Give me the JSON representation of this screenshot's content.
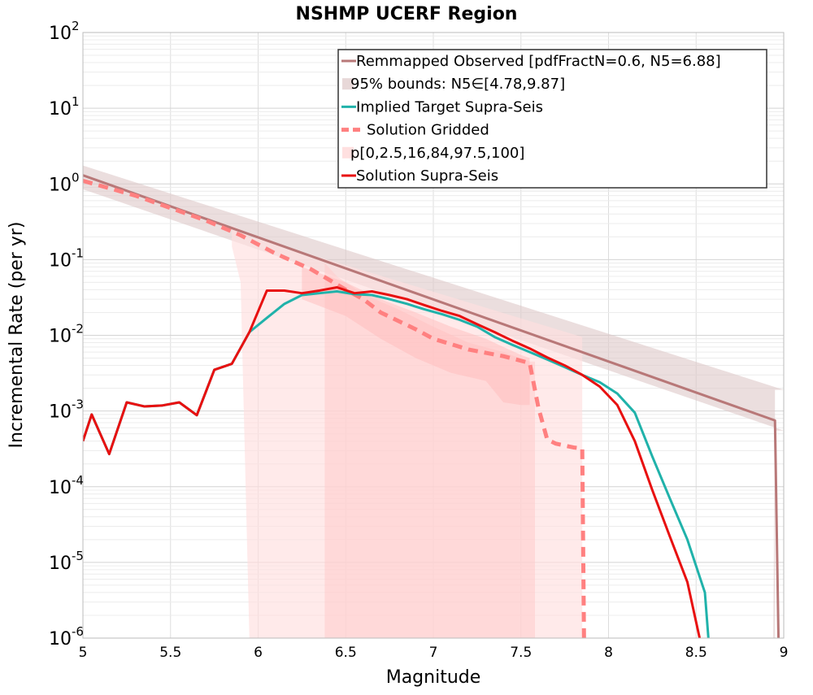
{
  "chart_data": {
    "type": "line",
    "title": "NSHMP UCERF Region",
    "xlabel": "Magnitude",
    "ylabel": "Incremental Rate (per yr)",
    "xlim": [
      5,
      9
    ],
    "ylim": [
      1e-06,
      100
    ],
    "y_scale": "log",
    "x_ticks": [
      "5",
      "5.5",
      "6",
      "6.5",
      "7",
      "7.5",
      "8",
      "8.5",
      "9"
    ],
    "y_ticks": [
      {
        "base": "10",
        "exp": "-6"
      },
      {
        "base": "10",
        "exp": "-5"
      },
      {
        "base": "10",
        "exp": "-4"
      },
      {
        "base": "10",
        "exp": "-3"
      },
      {
        "base": "10",
        "exp": "-2"
      },
      {
        "base": "10",
        "exp": "-1"
      },
      {
        "base": "10",
        "exp": "0"
      },
      {
        "base": "10",
        "exp": "1"
      },
      {
        "base": "10",
        "exp": "2"
      }
    ],
    "grid": true,
    "legend_position": "top-right",
    "legend": [
      {
        "label": "Remmapped Observed [pdfFractN=0.6, N5=6.88]",
        "style": "line",
        "color": "#b87878"
      },
      {
        "label": "95% bounds: N5∈[4.78,9.87]",
        "style": "band",
        "color": "#e8d8d8"
      },
      {
        "label": "Implied Target Supra-Seis",
        "style": "line",
        "color": "#20b2aa"
      },
      {
        "label": "Solution Gridded",
        "style": "dashed",
        "color": "#ff8080"
      },
      {
        "label": "p[0,2.5,16,84,97.5,100]",
        "style": "band",
        "color": "#ffe0e0"
      },
      {
        "label": "Solution Supra-Seis",
        "style": "line",
        "color": "#e81010"
      }
    ],
    "bands": [
      {
        "name": "95% bounds",
        "color": "#ddc8c8",
        "opacity": 0.6,
        "x": [
          5.0,
          9.0,
          8.95
        ],
        "lower": [
          0.85,
          0.00055,
          0.00055
        ],
        "upper": [
          1.75,
          0.0019,
          0.0019
        ],
        "drop_at_end": true
      },
      {
        "name": "p0-p100",
        "color": "#ffdede",
        "opacity": 0.65,
        "x": [
          5.85,
          5.9,
          5.95,
          5.98,
          6.0,
          7.85
        ],
        "lower": [
          0.15,
          0.05,
          1e-06,
          1e-06,
          1e-06,
          1e-06
        ],
        "upper": [
          0.28,
          0.25,
          0.2,
          0.19,
          0.19,
          0.0095
        ]
      },
      {
        "name": "p2.5-p97.5",
        "color": "#ffcaca",
        "opacity": 0.55,
        "x": [
          6.38,
          6.45,
          6.6,
          6.8,
          7.0,
          7.2,
          7.4,
          7.55,
          7.58
        ],
        "lower": [
          1e-06,
          1e-06,
          1e-06,
          1e-06,
          1e-06,
          1e-06,
          1e-06,
          1e-06,
          1e-06
        ],
        "upper": [
          0.09,
          0.06,
          0.035,
          0.022,
          0.013,
          0.008,
          0.006,
          0.0045,
          0.0045
        ]
      },
      {
        "name": "p16-p84",
        "color": "#ffbcbc",
        "opacity": 0.5,
        "x": [
          6.25,
          6.5,
          6.7,
          6.9,
          7.1,
          7.3,
          7.4,
          7.5,
          7.55
        ],
        "lower": [
          0.03,
          0.018,
          0.009,
          0.005,
          0.0032,
          0.0025,
          0.0013,
          0.0012,
          0.0012
        ],
        "upper": [
          0.08,
          0.05,
          0.03,
          0.02,
          0.013,
          0.009,
          0.007,
          0.0055,
          0.005
        ]
      }
    ],
    "series": [
      {
        "name": "Remmapped Observed [pdfFractN=0.6, N5=6.88]",
        "color": "#b87878",
        "width": 3,
        "dash": "",
        "x": [
          5.0,
          8.95,
          8.97
        ],
        "y": [
          1.3,
          0.00075,
          1e-06
        ]
      },
      {
        "name": "Solution Gridded",
        "color": "#ff8080",
        "width": 5,
        "dash": "12,8",
        "x": [
          5.0,
          5.3,
          5.5,
          5.7,
          5.9,
          6.1,
          6.3,
          6.4,
          6.5,
          6.6,
          6.7,
          6.9,
          7.0,
          7.2,
          7.4,
          7.55,
          7.6,
          7.65,
          7.7,
          7.8,
          7.85,
          7.86
        ],
        "y": [
          1.1,
          0.7,
          0.48,
          0.33,
          0.21,
          0.12,
          0.075,
          0.055,
          0.04,
          0.03,
          0.02,
          0.012,
          0.009,
          0.0065,
          0.0053,
          0.0043,
          0.0011,
          0.00042,
          0.00037,
          0.00033,
          0.00032,
          1e-06
        ]
      },
      {
        "name": "Implied Target Supra-Seis",
        "color": "#20b2aa",
        "width": 3,
        "dash": "",
        "x": [
          5.0,
          5.05,
          5.15,
          5.25,
          5.35,
          5.45,
          5.55,
          5.65,
          5.75,
          5.85,
          5.95,
          6.05,
          6.15,
          6.25,
          6.35,
          6.45,
          6.55,
          6.65,
          6.75,
          6.85,
          6.95,
          7.05,
          7.15,
          7.25,
          7.35,
          7.45,
          7.55,
          7.65,
          7.75,
          7.85,
          7.95,
          8.05,
          8.15,
          8.25,
          8.35,
          8.45,
          8.55,
          8.57
        ],
        "y": [
          0.0004,
          0.0009,
          0.00027,
          0.0013,
          0.00115,
          0.00118,
          0.0013,
          0.00088,
          0.0035,
          0.0042,
          0.011,
          0.017,
          0.026,
          0.034,
          0.036,
          0.038,
          0.035,
          0.034,
          0.03,
          0.026,
          0.022,
          0.019,
          0.016,
          0.013,
          0.0095,
          0.0075,
          0.006,
          0.0048,
          0.0038,
          0.003,
          0.0024,
          0.0017,
          0.00095,
          0.00025,
          7e-05,
          2e-05,
          4e-06,
          1e-06
        ]
      },
      {
        "name": "Solution Supra-Seis",
        "color": "#e81010",
        "width": 3,
        "dash": "",
        "x": [
          5.0,
          5.05,
          5.15,
          5.25,
          5.35,
          5.45,
          5.55,
          5.65,
          5.75,
          5.85,
          5.95,
          6.05,
          6.15,
          6.25,
          6.35,
          6.45,
          6.55,
          6.65,
          6.75,
          6.85,
          6.95,
          7.05,
          7.15,
          7.25,
          7.35,
          7.45,
          7.55,
          7.65,
          7.75,
          7.85,
          7.95,
          8.05,
          8.15,
          8.25,
          8.35,
          8.45,
          8.52
        ],
        "y": [
          0.0004,
          0.0009,
          0.00027,
          0.0013,
          0.00115,
          0.00118,
          0.0013,
          0.00088,
          0.0035,
          0.0042,
          0.011,
          0.039,
          0.039,
          0.036,
          0.039,
          0.043,
          0.036,
          0.038,
          0.034,
          0.03,
          0.025,
          0.021,
          0.018,
          0.014,
          0.011,
          0.0085,
          0.0067,
          0.0051,
          0.004,
          0.003,
          0.0021,
          0.0012,
          0.0004,
          9e-05,
          2.2e-05,
          5.5e-06,
          1e-06
        ]
      }
    ]
  }
}
